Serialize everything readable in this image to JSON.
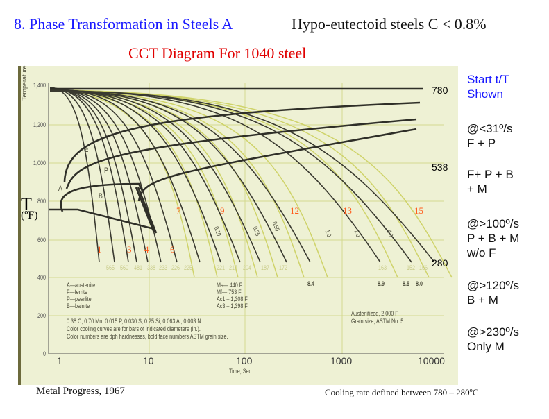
{
  "header": {
    "title": "8. Phase Transformation in Steels  A",
    "subtitle": "Hypo-eutectoid steels   C < 0.8%",
    "diagram_title": "CCT Diagram For 1040 steel"
  },
  "axis": {
    "y_unit_symbol": "T",
    "y_unit": "(ºF)",
    "y_title": "Temperature",
    "x_title": "Time, Sec",
    "y_ticks": [
      "1,400",
      "1,200",
      "1,000",
      "800",
      "600",
      "400",
      "200",
      "0"
    ],
    "x_ticks": [
      "1",
      "10",
      "100",
      "1000",
      "10000"
    ]
  },
  "phase_labels": [
    "A",
    "F",
    "P",
    "B"
  ],
  "cooling_curve_numbers": [
    "1",
    "3",
    "4",
    "6",
    "7",
    "9",
    "12",
    "13",
    "15"
  ],
  "hardness_row": [
    "565",
    "560",
    "481",
    "338",
    "233",
    "226",
    "225",
    "221",
    "217",
    "204",
    "187",
    "172",
    "163",
    "152",
    "156"
  ],
  "astm_numbers": [
    "8.4",
    "8.9",
    "8.5",
    "8.0"
  ],
  "bar_diameters": [
    "0.10",
    "0.25",
    "0.50",
    "1.0",
    "2.0",
    "4.0"
  ],
  "legend": [
    "A—austenite",
    "F—ferrite",
    "P—pearlite",
    "B—bainite"
  ],
  "temps": [
    "Ms— 440 F",
    "Mf— 753 F",
    "Ac1 – 1,308 F",
    "Ac3 – 1,398 F"
  ],
  "notes": [
    "0.38 C, 0.70 Mn, 0.015 P, 0.030 S, 0.25 Si, 0.063 Al, 0.003 N",
    "Color cooling curves are for bars of indicated diameters (in.).",
    "Color numbers are dph hardnesses, bold face numbers ASTM grain size."
  ],
  "conditions": [
    "Austenitized, 2,000 F",
    "Grain size, ASTM No. 5"
  ],
  "celsius_overlay": [
    "780",
    "538",
    "280"
  ],
  "sidebar": {
    "heading": [
      "Start t/T",
      "Shown"
    ],
    "items": [
      [
        "@<31º/s",
        "F + P"
      ],
      [
        "F+ P + B",
        "+ M"
      ],
      [
        "@>100º/s",
        "P + B + M",
        "w/o F"
      ],
      [
        "@>120º/s",
        "B + M"
      ],
      [
        "@>230º/s",
        "Only M"
      ]
    ]
  },
  "footer": {
    "source": "Metal Progress, 1967",
    "note": "Cooling rate defined between 780 – 280ºC"
  },
  "colors": {
    "title": "#1a1aff",
    "diagram_title": "#e00000",
    "curve_numbers": "#ff5a1a",
    "figure_bg": "#eef1d4"
  }
}
